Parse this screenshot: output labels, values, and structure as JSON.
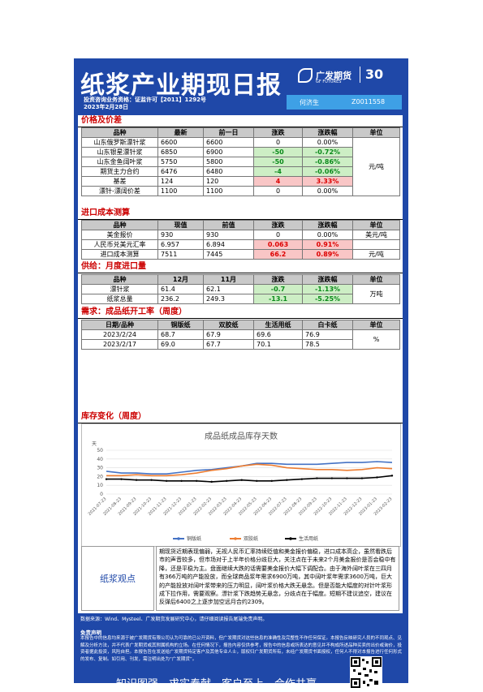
{
  "header": {
    "title": "纸浆产业期现日报",
    "license": "投资咨询业务资格：证监许可【2011】1292号",
    "date": "2023年2月28日",
    "logo_cn": "广发期货",
    "logo_en": "GF FUTURES",
    "anniversary": "30",
    "analyst": "何济生",
    "analyst_id": "Z0011558"
  },
  "s1": {
    "title": "价格及价差",
    "headers": [
      "品种",
      "最新",
      "前一日",
      "涨跌",
      "涨跌幅",
      "单位"
    ],
    "unit": "元/吨",
    "rows": [
      [
        "山东俄罗斯漂针浆",
        "6600",
        "6600",
        "0",
        "0.00%"
      ],
      [
        "山东银星漂针浆",
        "6850",
        "6900",
        "-50",
        "-0.72%"
      ],
      [
        "山东金鱼阔叶浆",
        "5750",
        "5800",
        "-50",
        "-0.86%"
      ],
      [
        "期货主力合约",
        "6476",
        "6480",
        "-4",
        "-0.06%"
      ],
      [
        "基差",
        "124",
        "120",
        "4",
        "3.33%"
      ],
      [
        "漂针-漂阔价差",
        "1100",
        "1100",
        "0",
        "0.00%"
      ]
    ]
  },
  "s2": {
    "title": "进口成本测算",
    "headers": [
      "品种",
      "现值",
      "前值",
      "涨跌",
      "涨跌幅",
      "单位"
    ],
    "rows": [
      [
        "美金报价",
        "930",
        "930",
        "0",
        "0.00%",
        "美元/吨"
      ],
      [
        "人民币兑美元汇率",
        "6.957",
        "6.894",
        "0.063",
        "0.91%",
        ""
      ],
      [
        "进口成本测算",
        "7511",
        "7445",
        "66.2",
        "0.89%",
        "元/吨"
      ]
    ]
  },
  "s3": {
    "title": "供给：月度进口量",
    "headers": [
      "品种",
      "12月",
      "11月",
      "涨跌",
      "涨跌幅",
      "单位"
    ],
    "unit": "万吨",
    "rows": [
      [
        "漂针浆",
        "61.4",
        "62.1",
        "-0.7",
        "-1.13%"
      ],
      [
        "纸浆总量",
        "236.2",
        "249.3",
        "-13.1",
        "-5.25%"
      ]
    ]
  },
  "s4": {
    "title": "需求：成品纸开工率（周度）",
    "headers": [
      "日期/品种",
      "铜版纸",
      "双胶纸",
      "生活用纸",
      "白卡纸",
      "单位"
    ],
    "unit": "%",
    "rows": [
      [
        "2023/2/24",
        "68.7",
        "67.9",
        "69.6",
        "76.9"
      ],
      [
        "2023/2/17",
        "69.0",
        "67.7",
        "70.1",
        "78.5"
      ]
    ]
  },
  "s5": {
    "title": "库存变化（周度）"
  },
  "chart_data": {
    "type": "line",
    "title": "成品纸成品库存天数",
    "ylabel": "天",
    "ylim": [
      0,
      50
    ],
    "yticks": [
      0,
      10,
      20,
      30,
      40,
      50
    ],
    "x": [
      "2021-07-23",
      "2021-08-23",
      "2021-09-23",
      "2021-10-23",
      "2021-11-23",
      "2021-12-23",
      "2022-01-23",
      "2022-02-23",
      "2022-03-23",
      "2022-04-23",
      "2022-05-23",
      "2022-06-23",
      "2022-07-23",
      "2022-08-23",
      "2022-09-23",
      "2022-10-23",
      "2022-11-23",
      "2022-12-23",
      "2023-01-23",
      "2023-02-23"
    ],
    "series": [
      {
        "name": "铜版纸",
        "color": "#4472c4",
        "values": [
          26,
          24,
          24,
          23,
          23,
          25,
          27,
          28,
          30,
          32,
          35,
          35,
          34,
          34,
          34,
          35,
          36,
          36,
          37,
          36
        ]
      },
      {
        "name": "双胶纸",
        "color": "#ed7d31",
        "values": [
          21,
          21,
          22,
          21,
          21,
          22,
          24,
          27,
          29,
          32,
          34,
          33,
          30,
          29,
          28,
          28,
          27,
          28,
          30,
          29
        ]
      },
      {
        "name": "生活用纸",
        "color": "#000000",
        "values": [
          17,
          17,
          16,
          16,
          15,
          15,
          15,
          14,
          15,
          16,
          15,
          15,
          16,
          17,
          18,
          18,
          18,
          18,
          19,
          21
        ]
      }
    ],
    "legend": "bottom"
  },
  "view": {
    "label": "纸浆观点",
    "text": "期现货近期表现偏弱，无视人民币汇率持续贬值和美金报价偏稳，进口成本高企，虽然看跌后市的声音较多，但市场对于上半年价格分歧巨大，关注点在于未来2个月美金报价是否会稳中有降，还是平稳为主。盘面继续大跌的话需要美金报价大幅下调配合。由于海外阔叶浆在三四月有366万吨的产能投放，而全球商品浆年需求6900万吨，其中阔叶浆年需求3600万吨，巨大的产能投放对阔叶浆带来的压力明显，阔叶浆价格大跌无悬念。但是否能大幅度的对针叶浆形成下拉作用，需要观察。漂针浆下跌趋势无悬念，分歧点在于幅度。短期不建议追空，建议在反弹后6400之上逐步加空远月合约2309。"
  },
  "footer": {
    "source": "数据来源：Wind、Mysteel、广发期货发展研究中心，请仔细阅读报告尾端免责声明。",
    "disclaimer_title": "免责声明",
    "disclaimer": "本报告中的信息均来源于被广发期货有限公司认为可靠的已公开资料，但广发期货对这些信息的准确性及完整性不作任何保证。本报告反映研究人员的不同观点、见解及分析方法，并不代表广发期货或其附属机构的立场。在任何情况下，报告内容仅供参考，报告中的信息或所表达的意见并不构成所述品种买卖的出价或询价，投资者据此投资，风险自担。本报告旨在发送给广发期货特定客户及其他专业人士，版权归广发期货所有，未经广发期货书面授权，任何人不得对本报告进行任何形式的发布、复制。如引用、刊发，需注明出处为“广发期货”。",
    "slogan": "知识图强，求实奉献，客户至上，合作共赢"
  }
}
